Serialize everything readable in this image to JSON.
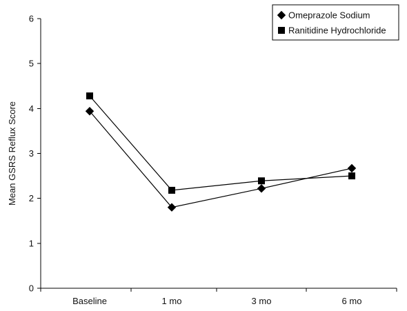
{
  "chart_data": {
    "type": "line",
    "title": "",
    "xlabel": "",
    "ylabel": "Mean GSRS Reflux Score",
    "categories": [
      "Baseline",
      "1 mo",
      "3 mo",
      "6 mo"
    ],
    "ylim": [
      0,
      6
    ],
    "yticks": [
      0,
      1,
      2,
      3,
      4,
      5,
      6
    ],
    "grid": false,
    "legend_position": "top-right",
    "series": [
      {
        "name": "Omeprazole Sodium",
        "marker": "diamond",
        "color": "#000000",
        "values": [
          3.94,
          1.8,
          2.22,
          2.67
        ]
      },
      {
        "name": "Ranitidine Hydrochloride",
        "marker": "square",
        "color": "#000000",
        "values": [
          4.28,
          2.18,
          2.39,
          2.5
        ]
      }
    ]
  }
}
